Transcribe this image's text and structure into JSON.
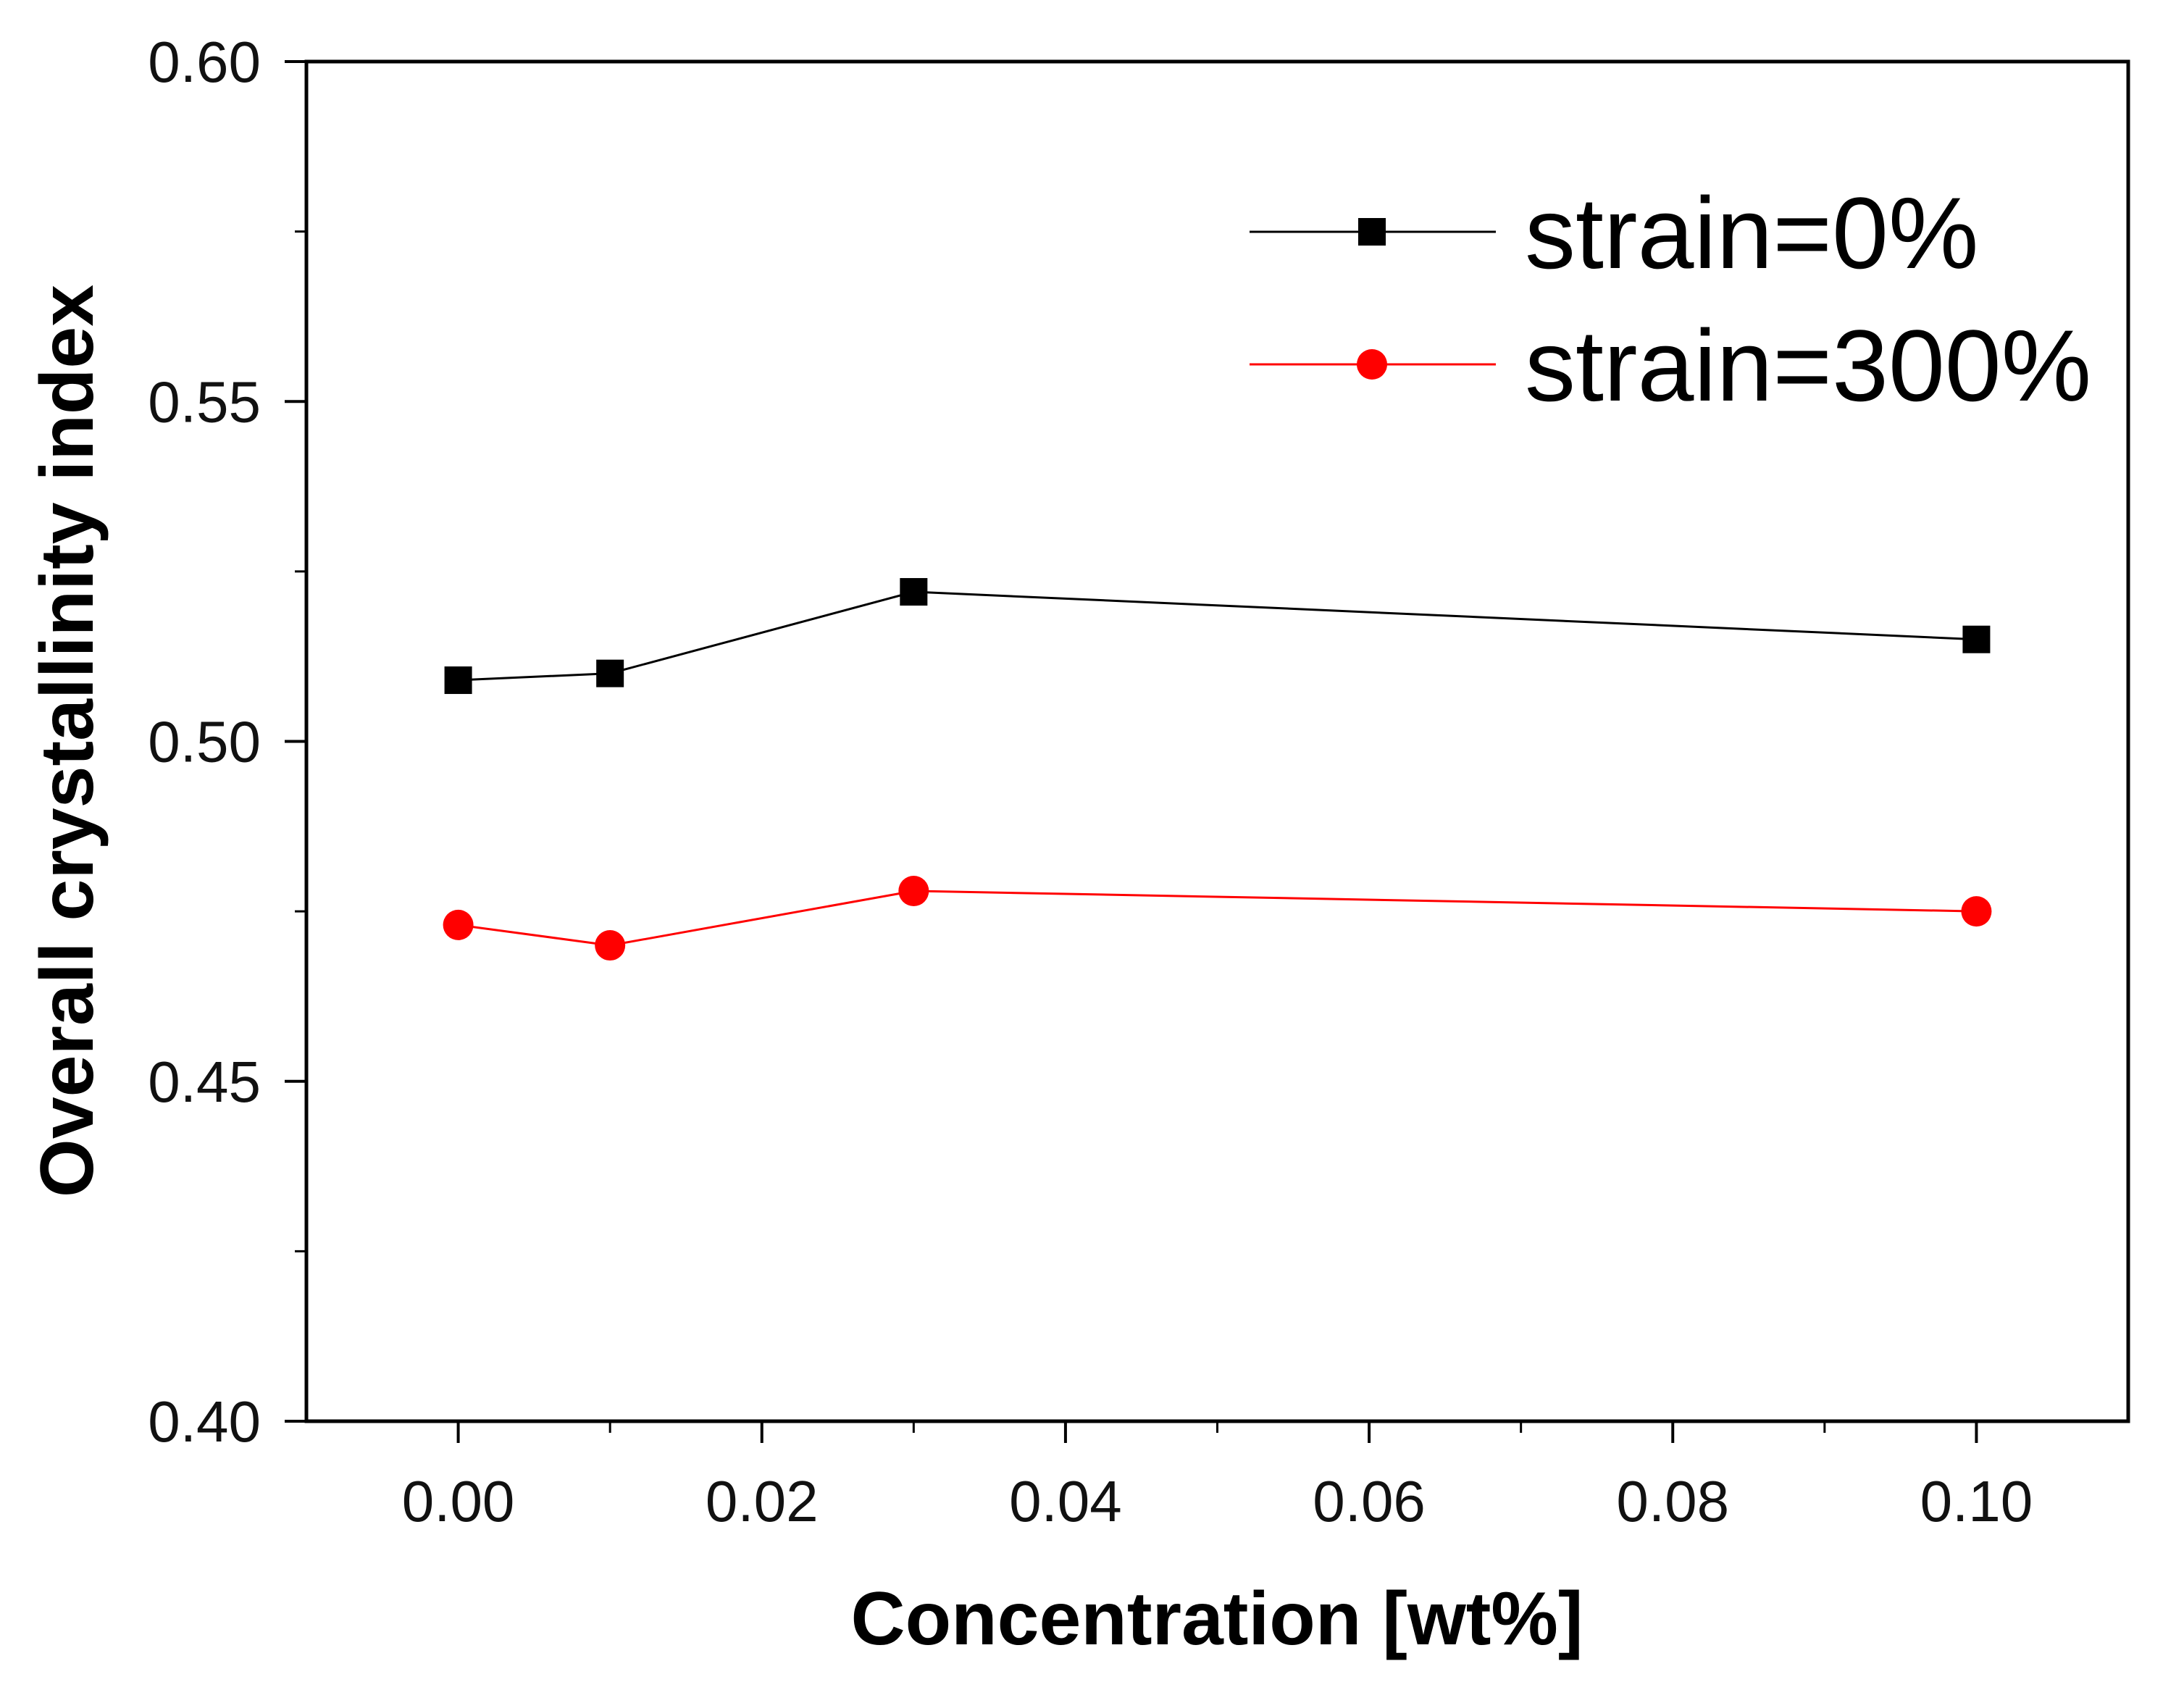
{
  "chart_data": {
    "type": "line",
    "title": "",
    "xlabel": "Concentration [wt%]",
    "ylabel": "Overall crystallinity index",
    "xlim": [
      -0.01,
      0.11
    ],
    "ylim": [
      0.4,
      0.6
    ],
    "x_ticks": [
      0.0,
      0.02,
      0.04,
      0.06,
      0.08,
      0.1
    ],
    "x_tick_labels": [
      "0.00",
      "0.02",
      "0.04",
      "0.06",
      "0.08",
      "0.10"
    ],
    "y_ticks": [
      0.4,
      0.45,
      0.5,
      0.55,
      0.6
    ],
    "y_tick_labels": [
      "0.40",
      "0.45",
      "0.50",
      "0.55",
      "0.60"
    ],
    "grid": false,
    "legend_position": "top-right",
    "series": [
      {
        "name": "strain=0%",
        "marker": "square",
        "color": "#000000",
        "x": [
          0.0,
          0.01,
          0.03,
          0.1
        ],
        "y": [
          0.509,
          0.51,
          0.522,
          0.515
        ]
      },
      {
        "name": "strain=300%",
        "marker": "circle",
        "color": "#ff0000",
        "x": [
          0.0,
          0.01,
          0.03,
          0.1
        ],
        "y": [
          0.473,
          0.47,
          0.478,
          0.475
        ]
      }
    ]
  }
}
